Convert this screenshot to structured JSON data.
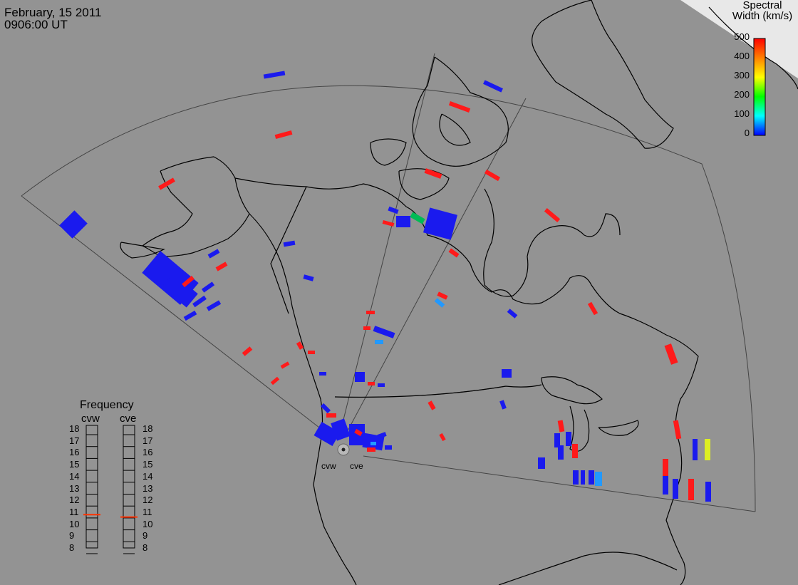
{
  "header": {
    "date": "February, 15 2011",
    "time": "0906:00 UT"
  },
  "colorbar": {
    "title_line1": "Spectral",
    "title_line2": "Width (km/s)",
    "ticks": [
      "500",
      "400",
      "300",
      "200",
      "100",
      "0"
    ],
    "colors": [
      "#ff0000",
      "#ff8000",
      "#ffff00",
      "#00ff00",
      "#00ffff",
      "#0000ff"
    ]
  },
  "radars": [
    {
      "code": "cvw",
      "freq_mhz": 10.8
    },
    {
      "code": "cve",
      "freq_mhz": 10.6
    }
  ],
  "frequency_panel": {
    "title": "Frequency",
    "scale": [
      "18",
      "17",
      "16",
      "15",
      "14",
      "13",
      "12",
      "11",
      "10",
      "9",
      "8"
    ],
    "min": 8,
    "max": 18
  },
  "colors": {
    "background": "#939393",
    "echo_low": "#1a1aee",
    "echo_high": "#ff1a1a",
    "echo_mid": "#00bb55",
    "echo_cyan": "#2299ff",
    "echo_yellow": "#ddee22",
    "coast": "#000000",
    "fov": "#444444"
  },
  "icons": {
    "radar_site": "radar-site-icon"
  }
}
